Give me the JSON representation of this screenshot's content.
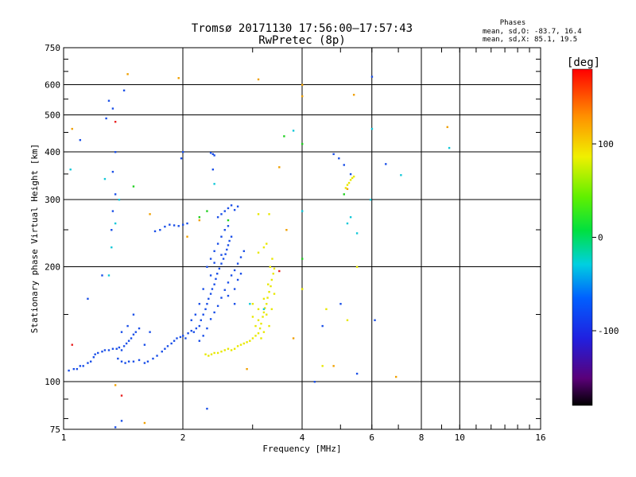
{
  "chart_data": {
    "type": "scatter",
    "title": "Tromsø 20171130 17:56:00–17:57:43",
    "subtitle": "RwPretec (8p)",
    "xlabel": "Frequency [MHz]",
    "ylabel": "Stationary phase Virtual Height [km]",
    "x_scale": "log",
    "y_scale": "log",
    "xlim": [
      1,
      16
    ],
    "ylim": [
      75,
      750
    ],
    "x_ticks": [
      {
        "v": 1,
        "label": "1"
      },
      {
        "v": 2,
        "label": "2"
      },
      {
        "v": 4,
        "label": "4"
      },
      {
        "v": 6,
        "label": "6"
      },
      {
        "v": 8,
        "label": "8"
      },
      {
        "v": 10,
        "label": "10"
      },
      {
        "v": 16,
        "label": "16"
      }
    ],
    "x_grid": [
      2,
      4,
      6,
      8,
      10
    ],
    "y_ticks": [
      {
        "v": 75,
        "label": "75"
      },
      {
        "v": 100,
        "label": "100"
      },
      {
        "v": 200,
        "label": "200"
      },
      {
        "v": 300,
        "label": "300"
      },
      {
        "v": 400,
        "label": "400"
      },
      {
        "v": 500,
        "label": "500"
      },
      {
        "v": 600,
        "label": "600"
      },
      {
        "v": 750,
        "label": "750"
      }
    ],
    "y_grid": [
      100,
      200,
      300,
      400,
      500,
      600
    ],
    "stats": {
      "heading": "Phases",
      "line_o": "mean, sd,O: -83.7, 16.4",
      "line_x": "mean, sd,X:  85.1, 19.5"
    },
    "colorbar": {
      "label": "[deg]",
      "range": [
        -180,
        180
      ],
      "ticks": [
        {
          "v": 100,
          "label": "100"
        },
        {
          "v": 0,
          "label": "0"
        },
        {
          "v": -100,
          "label": "-100"
        }
      ]
    },
    "point_colors": {
      "blue": "#1a4fe8",
      "navy": "#1030c0",
      "cyan": "#10c8d8",
      "yellow": "#e8e800",
      "yellowgreen": "#b0e020",
      "orange": "#f0a000",
      "green": "#20d020",
      "red": "#e82020"
    },
    "series": [
      {
        "mode": "O",
        "color": "blue",
        "points": [
          [
            1.03,
            107
          ],
          [
            1.06,
            108
          ],
          [
            1.08,
            108
          ],
          [
            1.1,
            110
          ],
          [
            1.12,
            110
          ],
          [
            1.15,
            112
          ],
          [
            1.17,
            113
          ],
          [
            1.19,
            116
          ],
          [
            1.2,
            118
          ],
          [
            1.22,
            119
          ],
          [
            1.25,
            120
          ],
          [
            1.27,
            121
          ],
          [
            1.3,
            121
          ],
          [
            1.33,
            122
          ],
          [
            1.36,
            122
          ],
          [
            1.38,
            123
          ],
          [
            1.4,
            121
          ],
          [
            1.42,
            124
          ],
          [
            1.44,
            126
          ],
          [
            1.46,
            128
          ],
          [
            1.48,
            130
          ],
          [
            1.5,
            133
          ],
          [
            1.52,
            135
          ],
          [
            1.55,
            138
          ],
          [
            1.37,
            115
          ],
          [
            1.4,
            113
          ],
          [
            1.43,
            112
          ],
          [
            1.46,
            113
          ],
          [
            1.5,
            113
          ],
          [
            1.55,
            114
          ],
          [
            1.6,
            112
          ],
          [
            1.63,
            113
          ],
          [
            1.68,
            115
          ],
          [
            1.72,
            117
          ],
          [
            1.77,
            120
          ],
          [
            1.8,
            122
          ],
          [
            1.83,
            124
          ],
          [
            1.87,
            126
          ],
          [
            1.9,
            128
          ],
          [
            1.93,
            130
          ],
          [
            1.97,
            131
          ],
          [
            2.0,
            132
          ],
          [
            2.03,
            130
          ],
          [
            2.06,
            134
          ],
          [
            2.1,
            136
          ],
          [
            2.13,
            135
          ],
          [
            2.16,
            138
          ],
          [
            2.2,
            140
          ],
          [
            2.22,
            145
          ],
          [
            2.25,
            150
          ],
          [
            2.28,
            155
          ],
          [
            2.3,
            160
          ],
          [
            2.32,
            165
          ],
          [
            2.35,
            170
          ],
          [
            2.37,
            175
          ],
          [
            2.4,
            180
          ],
          [
            2.42,
            186
          ],
          [
            2.44,
            192
          ],
          [
            2.47,
            198
          ],
          [
            2.5,
            204
          ],
          [
            2.53,
            210
          ],
          [
            2.56,
            216
          ],
          [
            2.58,
            222
          ],
          [
            2.6,
            228
          ],
          [
            2.62,
            234
          ],
          [
            2.65,
            240
          ],
          [
            2.2,
            128
          ],
          [
            2.25,
            132
          ],
          [
            2.3,
            138
          ],
          [
            2.35,
            146
          ],
          [
            2.4,
            152
          ],
          [
            2.45,
            158
          ],
          [
            2.5,
            166
          ],
          [
            2.55,
            174
          ],
          [
            2.6,
            182
          ],
          [
            2.65,
            190
          ],
          [
            2.7,
            196
          ],
          [
            2.75,
            204
          ],
          [
            2.8,
            212
          ],
          [
            2.85,
            220
          ],
          [
            2.3,
            200
          ],
          [
            2.35,
            210
          ],
          [
            2.4,
            220
          ],
          [
            2.45,
            230
          ],
          [
            2.5,
            240
          ],
          [
            2.55,
            250
          ],
          [
            2.6,
            256
          ],
          [
            2.35,
            190
          ],
          [
            2.4,
            205
          ],
          [
            2.5,
            215
          ],
          [
            2.7,
            175
          ],
          [
            2.75,
            185
          ],
          [
            2.8,
            192
          ],
          [
            2.6,
            168
          ],
          [
            2.7,
            160
          ],
          [
            2.2,
            160
          ],
          [
            2.25,
            175
          ],
          [
            2.15,
            150
          ],
          [
            2.1,
            145
          ],
          [
            2.45,
            270
          ],
          [
            2.5,
            275
          ],
          [
            2.55,
            280
          ],
          [
            2.6,
            285
          ],
          [
            2.65,
            290
          ],
          [
            2.7,
            282
          ],
          [
            2.75,
            288
          ],
          [
            1.8,
            255
          ],
          [
            1.85,
            258
          ],
          [
            1.9,
            257
          ],
          [
            1.95,
            256
          ],
          [
            1.75,
            250
          ],
          [
            1.7,
            248
          ],
          [
            2.0,
            258
          ],
          [
            2.05,
            260
          ],
          [
            2.35,
            398
          ],
          [
            2.38,
            395
          ],
          [
            2.4,
            392
          ],
          [
            2.0,
            400
          ],
          [
            1.98,
            385
          ],
          [
            1.42,
            580
          ],
          [
            1.3,
            545
          ],
          [
            1.33,
            520
          ],
          [
            1.28,
            490
          ],
          [
            1.33,
            355
          ],
          [
            1.35,
            310
          ],
          [
            1.33,
            280
          ],
          [
            1.32,
            250
          ],
          [
            1.35,
            400
          ],
          [
            1.25,
            190
          ],
          [
            1.15,
            165
          ],
          [
            1.1,
            430
          ],
          [
            1.4,
            135
          ],
          [
            1.45,
            140
          ],
          [
            1.5,
            150
          ],
          [
            1.6,
            125
          ],
          [
            1.65,
            135
          ],
          [
            2.3,
            85
          ],
          [
            1.35,
            76
          ],
          [
            2.38,
            360
          ],
          [
            4.8,
            395
          ],
          [
            4.95,
            385
          ],
          [
            5.3,
            350
          ],
          [
            5.1,
            370
          ],
          [
            6.5,
            372
          ],
          [
            6.0,
            630
          ],
          [
            5.5,
            105
          ],
          [
            5.0,
            160
          ],
          [
            6.1,
            145
          ],
          [
            4.5,
            140
          ],
          [
            4.3,
            100
          ],
          [
            1.4,
            79
          ]
        ]
      },
      {
        "mode": "X",
        "color": "yellow",
        "points": [
          [
            2.28,
            118
          ],
          [
            2.32,
            117
          ],
          [
            2.36,
            118
          ],
          [
            2.4,
            119
          ],
          [
            2.45,
            119
          ],
          [
            2.5,
            120
          ],
          [
            2.55,
            121
          ],
          [
            2.6,
            122
          ],
          [
            2.65,
            121
          ],
          [
            2.7,
            122
          ],
          [
            2.75,
            124
          ],
          [
            2.8,
            125
          ],
          [
            2.85,
            126
          ],
          [
            2.9,
            127
          ],
          [
            2.95,
            128
          ],
          [
            3.0,
            130
          ],
          [
            3.05,
            132
          ],
          [
            3.1,
            134
          ],
          [
            3.13,
            138
          ],
          [
            3.15,
            142
          ],
          [
            3.18,
            148
          ],
          [
            3.2,
            152
          ],
          [
            3.22,
            156
          ],
          [
            3.25,
            160
          ],
          [
            3.27,
            166
          ],
          [
            3.3,
            172
          ],
          [
            3.33,
            178
          ],
          [
            3.35,
            185
          ],
          [
            3.38,
            192
          ],
          [
            3.4,
            198
          ],
          [
            3.05,
            140
          ],
          [
            3.1,
            145
          ],
          [
            3.15,
            130
          ],
          [
            3.2,
            135
          ],
          [
            3.25,
            150
          ],
          [
            3.0,
            148
          ],
          [
            3.1,
            155
          ],
          [
            3.2,
            165
          ],
          [
            3.28,
            180
          ],
          [
            3.32,
            200
          ],
          [
            3.36,
            210
          ],
          [
            3.2,
            225
          ],
          [
            3.25,
            230
          ],
          [
            3.1,
            218
          ],
          [
            3.3,
            140
          ],
          [
            3.35,
            155
          ],
          [
            3.4,
            170
          ],
          [
            3.0,
            160
          ],
          [
            5.2,
            328
          ],
          [
            5.25,
            332
          ],
          [
            5.3,
            338
          ],
          [
            5.35,
            342
          ],
          [
            5.15,
            322
          ],
          [
            5.4,
            345
          ],
          [
            3.1,
            275
          ],
          [
            3.3,
            275
          ],
          [
            4.0,
            175
          ],
          [
            4.5,
            110
          ],
          [
            5.2,
            145
          ],
          [
            4.6,
            155
          ],
          [
            5.5,
            200
          ]
        ]
      },
      {
        "mode": "scatter-cyan",
        "color": "cyan",
        "points": [
          [
            1.3,
            190
          ],
          [
            1.35,
            260
          ],
          [
            1.38,
            300
          ],
          [
            1.27,
            340
          ],
          [
            1.32,
            225
          ],
          [
            2.4,
            330
          ],
          [
            3.2,
            155
          ],
          [
            2.95,
            160
          ],
          [
            3.8,
            455
          ],
          [
            5.3,
            270
          ],
          [
            5.2,
            260
          ],
          [
            5.5,
            245
          ],
          [
            6.0,
            460
          ],
          [
            9.4,
            410
          ],
          [
            7.1,
            348
          ],
          [
            1.04,
            360
          ],
          [
            5.95,
            300
          ],
          [
            4.0,
            280
          ]
        ]
      },
      {
        "mode": "scatter-other",
        "color": "orange",
        "points": [
          [
            1.05,
            460
          ],
          [
            1.45,
            640
          ],
          [
            1.65,
            275
          ],
          [
            2.05,
            240
          ],
          [
            2.2,
            265
          ],
          [
            3.1,
            620
          ],
          [
            3.5,
            365
          ],
          [
            3.65,
            250
          ],
          [
            4.0,
            560
          ],
          [
            5.2,
            320
          ],
          [
            5.4,
            565
          ],
          [
            9.3,
            465
          ],
          [
            1.95,
            625
          ],
          [
            1.6,
            78
          ],
          [
            1.35,
            98
          ],
          [
            4.8,
            110
          ],
          [
            2.9,
            108
          ],
          [
            3.8,
            130
          ],
          [
            6.9,
            103
          ],
          [
            4.0,
            600
          ]
        ]
      },
      {
        "mode": "scatter-green",
        "color": "green",
        "points": [
          [
            2.3,
            280
          ],
          [
            2.2,
            270
          ],
          [
            2.6,
            265
          ],
          [
            1.5,
            325
          ],
          [
            3.6,
            440
          ],
          [
            4.0,
            420
          ],
          [
            4.0,
            210
          ],
          [
            5.1,
            310
          ]
        ]
      },
      {
        "mode": "scatter-red",
        "color": "red",
        "points": [
          [
            1.4,
            92
          ],
          [
            1.35,
            480
          ],
          [
            1.05,
            125
          ],
          [
            3.5,
            195
          ]
        ]
      }
    ]
  }
}
